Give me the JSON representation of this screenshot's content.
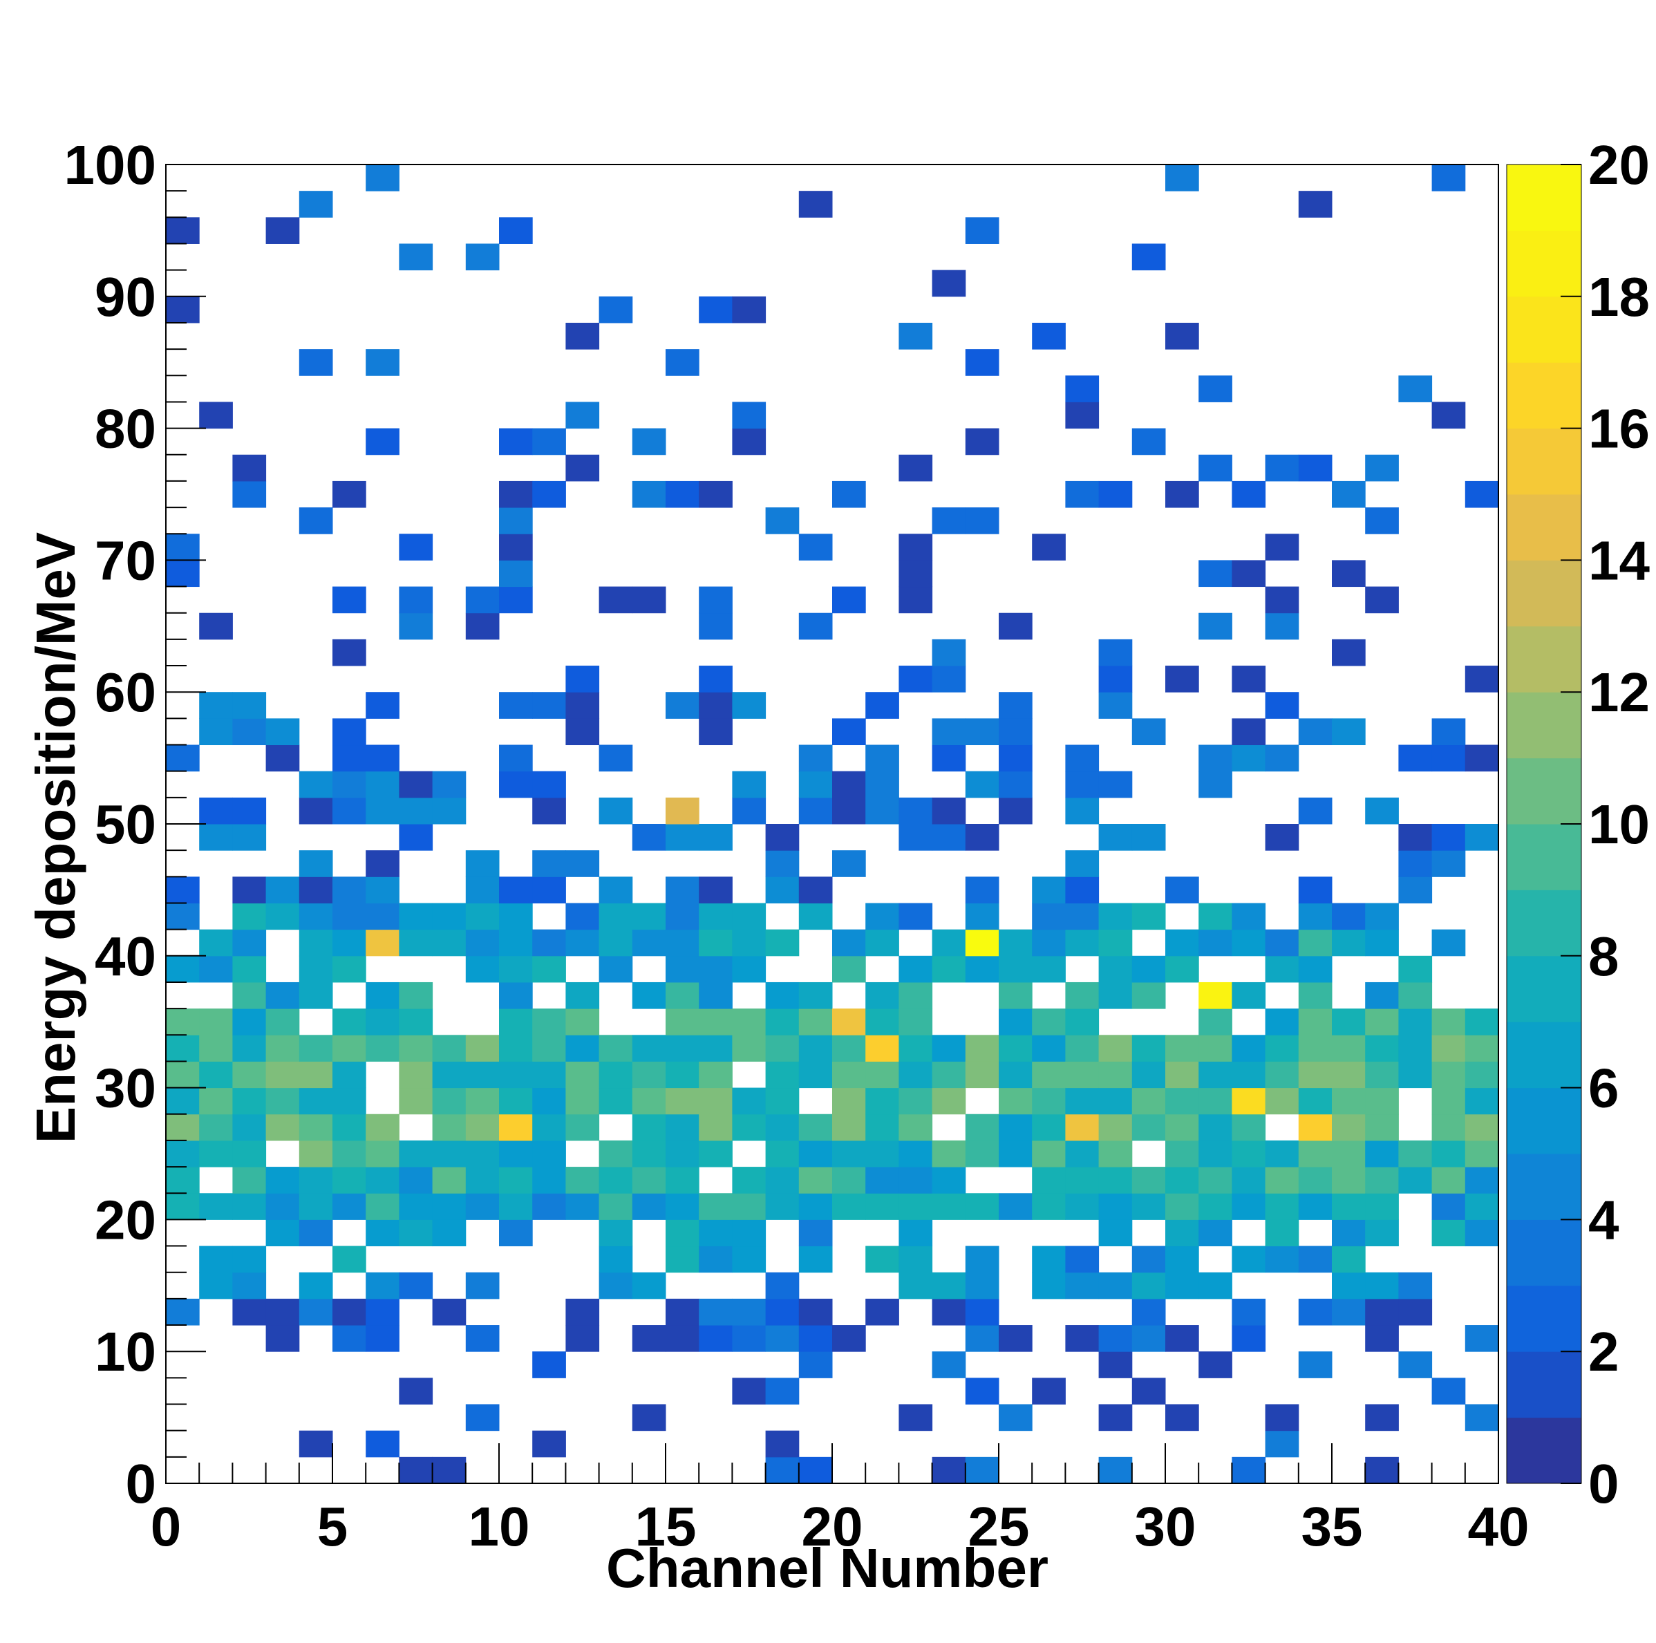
{
  "chart_data": {
    "type": "heatmap",
    "title": "",
    "xlabel": "Channel Number",
    "ylabel": "Energy deposition/MeV",
    "xlim": [
      0,
      40
    ],
    "ylim": [
      0,
      100
    ],
    "x_bins": 40,
    "y_bins": 50,
    "x_ticks": [
      "0",
      "5",
      "10",
      "15",
      "20",
      "25",
      "30",
      "35",
      "40"
    ],
    "y_ticks": [
      "0",
      "10",
      "20",
      "30",
      "40",
      "50",
      "60",
      "70",
      "80",
      "90",
      "100"
    ],
    "colorbar": {
      "zlim": [
        0,
        20
      ],
      "ticks": [
        "0",
        "2",
        "4",
        "6",
        "8",
        "10",
        "12",
        "14",
        "16",
        "18",
        "20"
      ],
      "palette": "ROOT kParula (dark blue → cyan → green → yellow)",
      "low_color": "#352a87",
      "high_color": "#f9fb0e"
    },
    "approx_count_scale": "counts per cell range roughly 1–20; peaks near (24,41), (31,38), (10,28), (34,28)",
    "cells": [
      [
        0,
        2
      ],
      [
        0,
        6
      ],
      [
        0,
        10
      ],
      [
        0,
        14
      ],
      [
        0,
        22
      ],
      [
        0,
        24
      ],
      [
        0,
        26
      ],
      [
        0,
        28
      ],
      [
        0,
        30
      ],
      [
        0,
        34
      ],
      [
        0,
        38
      ],
      [
        0,
        42
      ],
      [
        0,
        44
      ],
      [
        0,
        48
      ],
      [
        0,
        52
      ],
      [
        0,
        58
      ],
      [
        0,
        62
      ],
      [
        0,
        68
      ],
      [
        0,
        72
      ],
      [
        0,
        76
      ],
      [
        0,
        80
      ],
      [
        0,
        84
      ],
      [
        0,
        86
      ],
      [
        0,
        88
      ],
      [
        0,
        90
      ],
      [
        0,
        92
      ],
      [
        0,
        94
      ],
      [
        0,
        96
      ],
      [
        0,
        98
      ],
      [
        1,
        4
      ],
      [
        1,
        8
      ],
      [
        1,
        12
      ],
      [
        1,
        16
      ],
      [
        1,
        18
      ],
      [
        1,
        20
      ],
      [
        1,
        26
      ],
      [
        1,
        30
      ],
      [
        1,
        32
      ],
      [
        1,
        36
      ],
      [
        1,
        40
      ],
      [
        1,
        44
      ],
      [
        1,
        46
      ],
      [
        1,
        50
      ],
      [
        1,
        54
      ],
      [
        1,
        56
      ],
      [
        1,
        60
      ],
      [
        1,
        64
      ],
      [
        1,
        66
      ],
      [
        1,
        70
      ],
      [
        1,
        74
      ],
      [
        1,
        78
      ],
      [
        1,
        82
      ],
      [
        1,
        88
      ],
      [
        1,
        92
      ],
      [
        1,
        96
      ],
      [
        1,
        98
      ],
      [
        2,
        0
      ],
      [
        2,
        2
      ],
      [
        2,
        4
      ],
      [
        2,
        8
      ],
      [
        2,
        10
      ],
      [
        2,
        14
      ],
      [
        2,
        18
      ],
      [
        2,
        22
      ],
      [
        2,
        26
      ],
      [
        2,
        28
      ],
      [
        2,
        30
      ],
      [
        2,
        34
      ],
      [
        2,
        38
      ],
      [
        2,
        42
      ],
      [
        2,
        46
      ],
      [
        2,
        48
      ],
      [
        2,
        50
      ],
      [
        2,
        54
      ],
      [
        2,
        58
      ],
      [
        2,
        60
      ],
      [
        2,
        62
      ],
      [
        2,
        66
      ],
      [
        2,
        70
      ],
      [
        2,
        72
      ],
      [
        2,
        74
      ],
      [
        2,
        78
      ],
      [
        2,
        82
      ],
      [
        2,
        86
      ],
      [
        2,
        90
      ],
      [
        2,
        94
      ],
      [
        2,
        98
      ]
    ]
  }
}
